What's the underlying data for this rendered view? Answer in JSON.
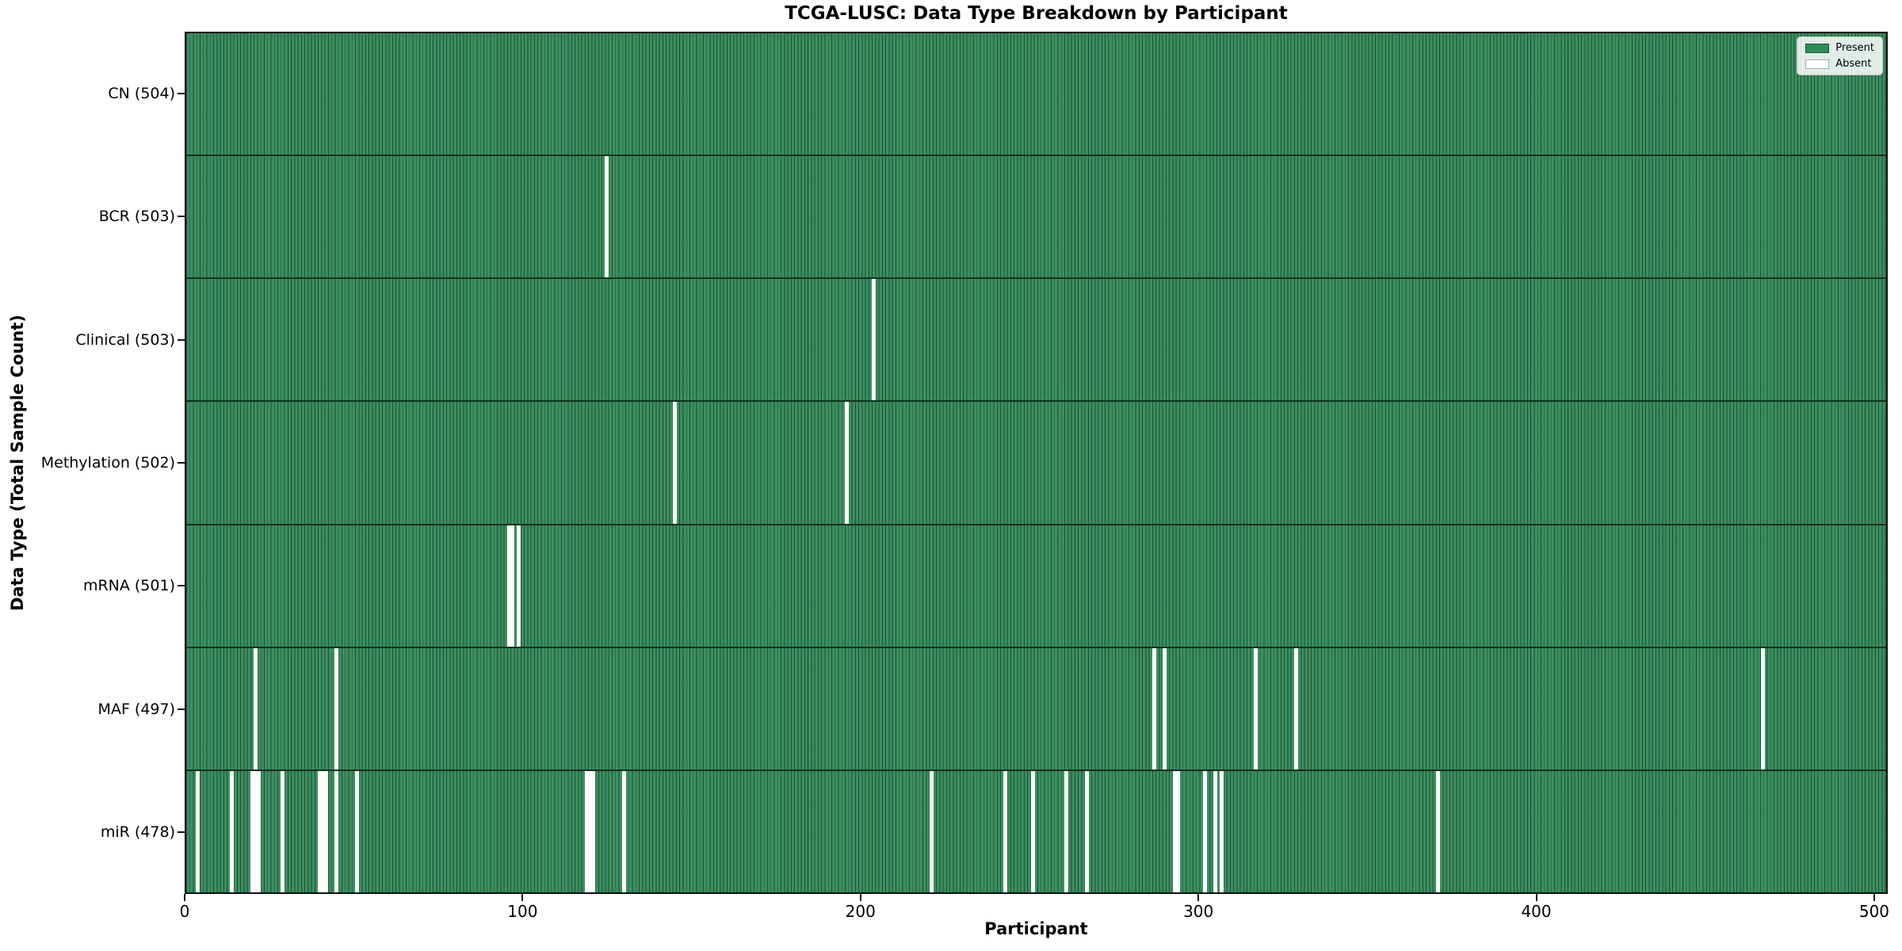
{
  "chart_data": {
    "type": "heatmap",
    "title": "TCGA-LUSC: Data Type Breakdown by Participant",
    "xlabel": "Participant",
    "ylabel": "Data Type (Total Sample Count)",
    "n_participants": 504,
    "x_ticks": [
      0,
      100,
      200,
      300,
      400,
      500
    ],
    "x_range": [
      0,
      504
    ],
    "grid": false,
    "legend": {
      "position": "upper-right",
      "entries": [
        {
          "label": "Present",
          "color": "#2e8b57"
        },
        {
          "label": "Absent",
          "color": "#ffffff"
        }
      ]
    },
    "rows": [
      {
        "name": "CN",
        "total": 504,
        "label": "CN (504)",
        "absent_participants": []
      },
      {
        "name": "BCR",
        "total": 503,
        "label": "BCR (503)",
        "absent_participants": [
          124
        ]
      },
      {
        "name": "Clinical",
        "total": 503,
        "label": "Clinical (503)",
        "absent_participants": [
          203
        ]
      },
      {
        "name": "Methylation",
        "total": 502,
        "label": "Methylation (502)",
        "absent_participants": [
          144,
          195
        ]
      },
      {
        "name": "mRNA",
        "total": 501,
        "label": "mRNA (501)",
        "absent_participants": [
          95,
          96,
          98
        ]
      },
      {
        "name": "MAF",
        "total": 497,
        "label": "MAF (497)",
        "absent_participants": [
          20,
          44,
          286,
          289,
          316,
          328,
          466
        ]
      },
      {
        "name": "miR",
        "total": 478,
        "label": "miR (478)",
        "absent_participants": [
          3,
          13,
          19,
          20,
          21,
          28,
          39,
          40,
          41,
          44,
          50,
          118,
          119,
          120,
          129,
          220,
          242,
          250,
          260,
          266,
          292,
          293,
          301,
          304,
          306,
          370
        ]
      }
    ],
    "colors": {
      "present": "#2e8b57",
      "absent": "#ffffff",
      "cell_edge": "#10311f",
      "axis": "#111111",
      "background": "#ffffff"
    }
  }
}
